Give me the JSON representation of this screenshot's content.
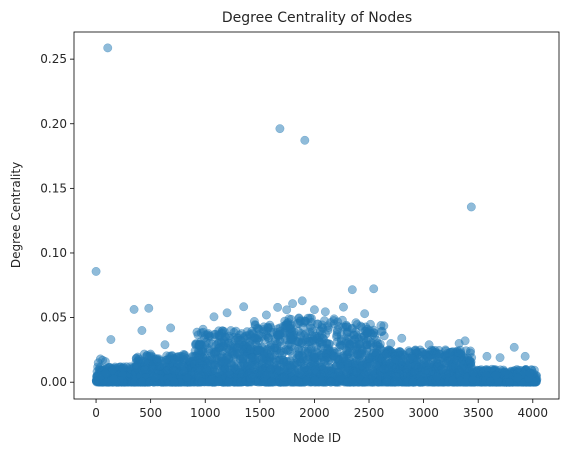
{
  "chart_data": {
    "type": "scatter",
    "title": "Degree Centrality of Nodes",
    "xlabel": "Node ID",
    "ylabel": "Degree Centrality",
    "xlim": [
      -202,
      4240
    ],
    "ylim": [
      -0.013,
      0.271
    ],
    "x_ticks": [
      {
        "value": 0,
        "label": "0"
      },
      {
        "value": 500,
        "label": "500"
      },
      {
        "value": 1000,
        "label": "1000"
      },
      {
        "value": 1500,
        "label": "1500"
      },
      {
        "value": 2000,
        "label": "2000"
      },
      {
        "value": 2500,
        "label": "2500"
      },
      {
        "value": 3000,
        "label": "3000"
      },
      {
        "value": 3500,
        "label": "3500"
      },
      {
        "value": 4000,
        "label": "4000"
      }
    ],
    "y_ticks": [
      {
        "value": 0.0,
        "label": "0.00"
      },
      {
        "value": 0.05,
        "label": "0.05"
      },
      {
        "value": 0.1,
        "label": "0.10"
      },
      {
        "value": 0.15,
        "label": "0.15"
      },
      {
        "value": 0.2,
        "label": "0.20"
      },
      {
        "value": 0.25,
        "label": "0.25"
      }
    ],
    "grid": false,
    "legend": "none",
    "marker_color": "#1f77b4",
    "marker_alpha": 0.5,
    "series": [
      {
        "points": [
          [
            107,
            0.2587
          ],
          [
            1684,
            0.1962
          ],
          [
            1912,
            0.1872
          ],
          [
            3437,
            0.1356
          ],
          [
            0,
            0.0857
          ],
          [
            2347,
            0.0716
          ],
          [
            2543,
            0.0723
          ],
          [
            1888,
            0.063
          ],
          [
            1800,
            0.0608
          ],
          [
            1663,
            0.0579
          ],
          [
            1352,
            0.0584
          ],
          [
            1746,
            0.056
          ],
          [
            2266,
            0.0581
          ],
          [
            2000,
            0.0561
          ],
          [
            483,
            0.0572
          ],
          [
            348,
            0.0563
          ],
          [
            1200,
            0.0537
          ],
          [
            1080,
            0.0506
          ],
          [
            2100,
            0.0545
          ],
          [
            2460,
            0.053
          ],
          [
            1560,
            0.052
          ],
          [
            2800,
            0.034
          ],
          [
            3380,
            0.032
          ],
          [
            3325,
            0.03
          ],
          [
            3830,
            0.027
          ],
          [
            3930,
            0.02
          ],
          [
            3580,
            0.02
          ],
          [
            136,
            0.033
          ],
          [
            420,
            0.04
          ],
          [
            683,
            0.042
          ],
          [
            631,
            0.029
          ],
          [
            980,
            0.041
          ],
          [
            2700,
            0.03
          ],
          [
            3050,
            0.029
          ],
          [
            1450,
            0.047
          ],
          [
            2180,
            0.049
          ],
          [
            1920,
            0.047
          ],
          [
            2380,
            0.046
          ],
          [
            3700,
            0.019
          ],
          [
            3200,
            0.025
          ],
          [
            40,
            0.018
          ],
          [
            60,
            0.017
          ],
          [
            20,
            0.015
          ],
          [
            85,
            0.016
          ]
        ]
      }
    ],
    "bulk_bands": [
      {
        "x": [
          0,
          350
        ],
        "y": [
          0.0,
          0.012
        ]
      },
      {
        "x": [
          350,
          900
        ],
        "y": [
          0.0,
          0.022
        ]
      },
      {
        "x": [
          900,
          1400
        ],
        "y": [
          0.0,
          0.04
        ]
      },
      {
        "x": [
          1400,
          1700
        ],
        "y": [
          0.0,
          0.045
        ]
      },
      {
        "x": [
          1700,
          2000
        ],
        "y": [
          0.0,
          0.05
        ]
      },
      {
        "x": [
          2000,
          2350
        ],
        "y": [
          0.0,
          0.048
        ]
      },
      {
        "x": [
          2350,
          2650
        ],
        "y": [
          0.0,
          0.045
        ]
      },
      {
        "x": [
          2650,
          3450
        ],
        "y": [
          0.0,
          0.025
        ]
      },
      {
        "x": [
          3450,
          4040
        ],
        "y": [
          0.0,
          0.01
        ]
      }
    ]
  }
}
